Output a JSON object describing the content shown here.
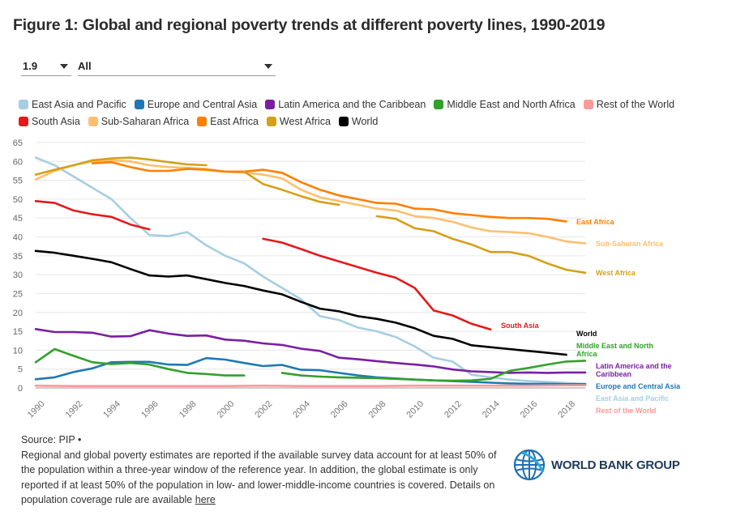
{
  "title": "Figure 1: Global and regional poverty trends at different poverty lines, 1990-2019",
  "controls": {
    "poverty_line": "1.9",
    "region": "All"
  },
  "chart_data": {
    "type": "line",
    "ylim": [
      0,
      65
    ],
    "yticks": [
      0,
      5,
      10,
      15,
      20,
      25,
      30,
      35,
      40,
      45,
      50,
      55,
      60,
      65
    ],
    "xlim": [
      1990,
      2019
    ],
    "xticks": [
      1990,
      1992,
      1994,
      1996,
      1998,
      2000,
      2002,
      2004,
      2006,
      2008,
      2010,
      2012,
      2014,
      2016,
      2018
    ],
    "grid": "horizontal",
    "legend": "top",
    "series": [
      {
        "name": "East Asia and Pacific",
        "color": "#a6cee3",
        "label": "East Asia and Pacific",
        "x": [
          1990,
          1991,
          1992,
          1993,
          1994,
          1995,
          1996,
          1997,
          1998,
          1999,
          2000,
          2001,
          2002,
          2003,
          2004,
          2005,
          2006,
          2007,
          2008,
          2009,
          2010,
          2011,
          2012,
          2013,
          2014,
          2015,
          2016,
          2017,
          2018,
          2019
        ],
        "y": [
          61,
          59,
          56,
          53,
          50,
          45,
          40.5,
          40.2,
          41.3,
          37.8,
          35,
          33,
          29.5,
          26.5,
          23.5,
          19,
          18,
          16,
          15,
          13.5,
          11,
          8,
          7,
          3.5,
          2.8,
          2.2,
          1.8,
          1.6,
          1.3,
          1.1
        ]
      },
      {
        "name": "Europe and Central Asia",
        "color": "#1f78b4",
        "label": "Europe and Central Asia",
        "x": [
          1990,
          1991,
          1992,
          1993,
          1994,
          1995,
          1996,
          1997,
          1998,
          1999,
          2000,
          2001,
          2002,
          2003,
          2004,
          2005,
          2006,
          2007,
          2008,
          2009,
          2010,
          2011,
          2012,
          2013,
          2014,
          2015,
          2016,
          2017,
          2018,
          2019
        ],
        "y": [
          2.3,
          2.8,
          4.2,
          5.2,
          6.8,
          6.9,
          6.9,
          6.2,
          6.1,
          7.9,
          7.5,
          6.6,
          5.8,
          6.1,
          4.8,
          4.7,
          4.0,
          3.3,
          2.8,
          2.5,
          2.2,
          2.0,
          1.8,
          1.6,
          1.4,
          1.2,
          1.1,
          1.1,
          1.0,
          1.0
        ]
      },
      {
        "name": "Latin America and the Caribbean",
        "color": "#7b1fa2",
        "label": "Latin America and the Caribbean",
        "x": [
          1990,
          1991,
          1992,
          1993,
          1994,
          1995,
          1996,
          1997,
          1998,
          1999,
          2000,
          2001,
          2002,
          2003,
          2004,
          2005,
          2006,
          2007,
          2008,
          2009,
          2010,
          2011,
          2012,
          2013,
          2014,
          2015,
          2016,
          2017,
          2018,
          2019
        ],
        "y": [
          15.6,
          14.8,
          14.8,
          14.6,
          13.6,
          13.7,
          15.3,
          14.4,
          13.8,
          13.9,
          12.8,
          12.5,
          11.8,
          11.4,
          10.4,
          9.8,
          8.0,
          7.6,
          7.1,
          6.6,
          6.2,
          5.7,
          4.9,
          4.4,
          4.2,
          4.0,
          4.1,
          4.0,
          4.1,
          4.1
        ]
      },
      {
        "name": "Middle East and North Africa",
        "color": "#33a02c",
        "label": "Middle East and North Africa",
        "x": [
          1990,
          1991,
          1992,
          1993,
          1994,
          1995,
          1996,
          1997,
          1998,
          1999,
          2000,
          2001,
          null,
          2003,
          2004,
          2005,
          2006,
          2007,
          2008,
          2009,
          2010,
          2011,
          2012,
          2013,
          2014,
          2015,
          2016,
          2017,
          2018,
          2019
        ],
        "y": [
          6.8,
          10.3,
          8.5,
          6.8,
          6.3,
          6.6,
          6.2,
          5.0,
          4.0,
          3.7,
          3.3,
          3.3,
          null,
          4.0,
          3.3,
          3.0,
          2.8,
          2.7,
          2.6,
          2.4,
          2.2,
          2.0,
          1.9,
          2.0,
          2.4,
          4.5,
          5.3,
          6.2,
          7.0,
          7.2
        ]
      },
      {
        "name": "Rest of the World",
        "color": "#fb9a99",
        "label": "Rest of the World",
        "x": [
          1990,
          1992,
          1994,
          1996,
          1998,
          2000,
          2002,
          2004,
          2006,
          2008,
          2010,
          2012,
          2014,
          2016,
          2018,
          2019
        ],
        "y": [
          0.6,
          0.5,
          0.5,
          0.5,
          0.5,
          0.5,
          0.6,
          0.5,
          0.5,
          0.5,
          0.6,
          0.6,
          0.6,
          0.6,
          0.7,
          0.7
        ]
      },
      {
        "name": "South Asia",
        "color": "#e31a1c",
        "label": "South Asia",
        "x": [
          1990,
          1991,
          1992,
          1993,
          1994,
          1995,
          1996,
          null,
          2002,
          2003,
          2004,
          2005,
          2006,
          2007,
          2008,
          2009,
          2010,
          2011,
          2012,
          2013,
          2014
        ],
        "y": [
          49.5,
          49.0,
          47.0,
          46.0,
          45.3,
          43.3,
          42.0,
          null,
          39.5,
          38.5,
          36.8,
          35.0,
          33.5,
          32.0,
          30.5,
          29.2,
          26.5,
          20.5,
          19.2,
          17.0,
          15.5
        ]
      },
      {
        "name": "Sub-Saharan Africa",
        "color": "#fdbf6f",
        "label": "Sub-Saharan Africa",
        "x": [
          1990,
          1991,
          1992,
          1993,
          1994,
          1995,
          1996,
          1997,
          1998,
          1999,
          2000,
          2001,
          2002,
          2003,
          2004,
          2005,
          2006,
          2007,
          2008,
          2009,
          2010,
          2011,
          2012,
          2013,
          2014,
          2015,
          2016,
          2017,
          2018,
          2019
        ],
        "y": [
          55.2,
          57.5,
          59.0,
          60.0,
          60.3,
          60.0,
          59.0,
          58.5,
          58.3,
          58.0,
          57.3,
          57.0,
          56.5,
          55.5,
          52.5,
          50.5,
          49.5,
          48.5,
          47.5,
          47.0,
          45.5,
          45.0,
          44.0,
          42.5,
          41.5,
          41.3,
          41.0,
          40.0,
          38.8,
          38.3
        ]
      },
      {
        "name": "East Africa",
        "color": "#ff7f00",
        "label": "East Africa",
        "x": [
          1993,
          1994,
          1995,
          1996,
          1997,
          1998,
          1999,
          2000,
          2001,
          2002,
          2003,
          2004,
          2005,
          2006,
          2007,
          2008,
          2009,
          2010,
          2011,
          2012,
          2013,
          2014,
          2015,
          2016,
          2017,
          2018
        ],
        "y": [
          59.5,
          59.8,
          58.5,
          57.5,
          57.5,
          58.0,
          57.8,
          57.3,
          57.3,
          57.8,
          57.0,
          54.5,
          52.5,
          51.0,
          50.0,
          49.0,
          48.8,
          47.5,
          47.3,
          46.3,
          45.8,
          45.3,
          45.0,
          45.0,
          44.8,
          44.1
        ]
      },
      {
        "name": "West Africa",
        "color": "#d4a017",
        "label": "West Africa",
        "x": [
          1990,
          1991,
          1992,
          1993,
          1994,
          1995,
          1996,
          1997,
          1998,
          1999,
          null,
          2001,
          2002,
          2003,
          2004,
          2005,
          2006,
          null,
          2008,
          2009,
          2010,
          2011,
          2012,
          2013,
          2014,
          2015,
          2016,
          2017,
          2018,
          2019
        ],
        "y": [
          56.5,
          57.8,
          59.0,
          60.3,
          60.8,
          61.0,
          60.5,
          59.8,
          59.2,
          59.0,
          null,
          57.3,
          54.0,
          52.5,
          50.8,
          49.3,
          48.5,
          null,
          45.5,
          44.8,
          42.3,
          41.5,
          39.5,
          38.0,
          36.0,
          36.0,
          35.0,
          33.0,
          31.3,
          30.5
        ]
      },
      {
        "name": "World",
        "color": "#000000",
        "label": "World",
        "x": [
          1990,
          1991,
          1992,
          1993,
          1994,
          1995,
          1996,
          1997,
          1998,
          1999,
          2000,
          2001,
          2002,
          2003,
          2004,
          2005,
          2006,
          2007,
          2008,
          2009,
          2010,
          2011,
          2012,
          2013,
          2014,
          2015,
          2016,
          2017,
          2018
        ],
        "y": [
          36.3,
          35.8,
          35.0,
          34.2,
          33.3,
          31.5,
          29.8,
          29.5,
          29.8,
          28.8,
          27.8,
          27.0,
          25.8,
          24.8,
          22.8,
          21.0,
          20.3,
          19.0,
          18.3,
          17.3,
          15.8,
          13.8,
          13.0,
          11.3,
          10.8,
          10.3,
          9.8,
          9.3,
          8.8
        ]
      }
    ],
    "end_labels": [
      {
        "series": "East Africa",
        "text": "East Africa",
        "color": "#ff7f00"
      },
      {
        "series": "Sub-Saharan Africa",
        "text": "Sub-Saharan Africa",
        "color": "#fdbf6f"
      },
      {
        "series": "West Africa",
        "text": "West Africa",
        "color": "#d4a017"
      },
      {
        "series": "South Asia",
        "text": "South Asia",
        "color": "#e31a1c"
      },
      {
        "series": "World",
        "text": "World",
        "color": "#000000"
      },
      {
        "series": "Middle East and North Africa",
        "text": "Middle East and North Africa",
        "color": "#33a02c"
      },
      {
        "series": "Latin America and the Caribbean",
        "text": "Latin America and the Caribbean",
        "color": "#7b1fa2"
      },
      {
        "series": "Europe and Central Asia",
        "text": "Europe and Central Asia",
        "color": "#1f78b4"
      },
      {
        "series": "East Asia and Pacific",
        "text": "East Asia and Pacific",
        "color": "#a6cee3"
      },
      {
        "series": "Rest of the World",
        "text": "Rest of the World",
        "color": "#fb9a99"
      }
    ]
  },
  "footer": {
    "source": "Source: PIP •",
    "note": "Regional and global poverty estimates are reported if the available survey data account for at least 50% of the population within a three-year window of the reference year. In addition, the global estimate is only reported if at least 50% of the population in low- and lower-middle-income countries is covered. Details on population coverage rule are available",
    "link_text": "here"
  },
  "logo": {
    "text": "WORLD BANK GROUP",
    "color": "#1f3a5a"
  }
}
